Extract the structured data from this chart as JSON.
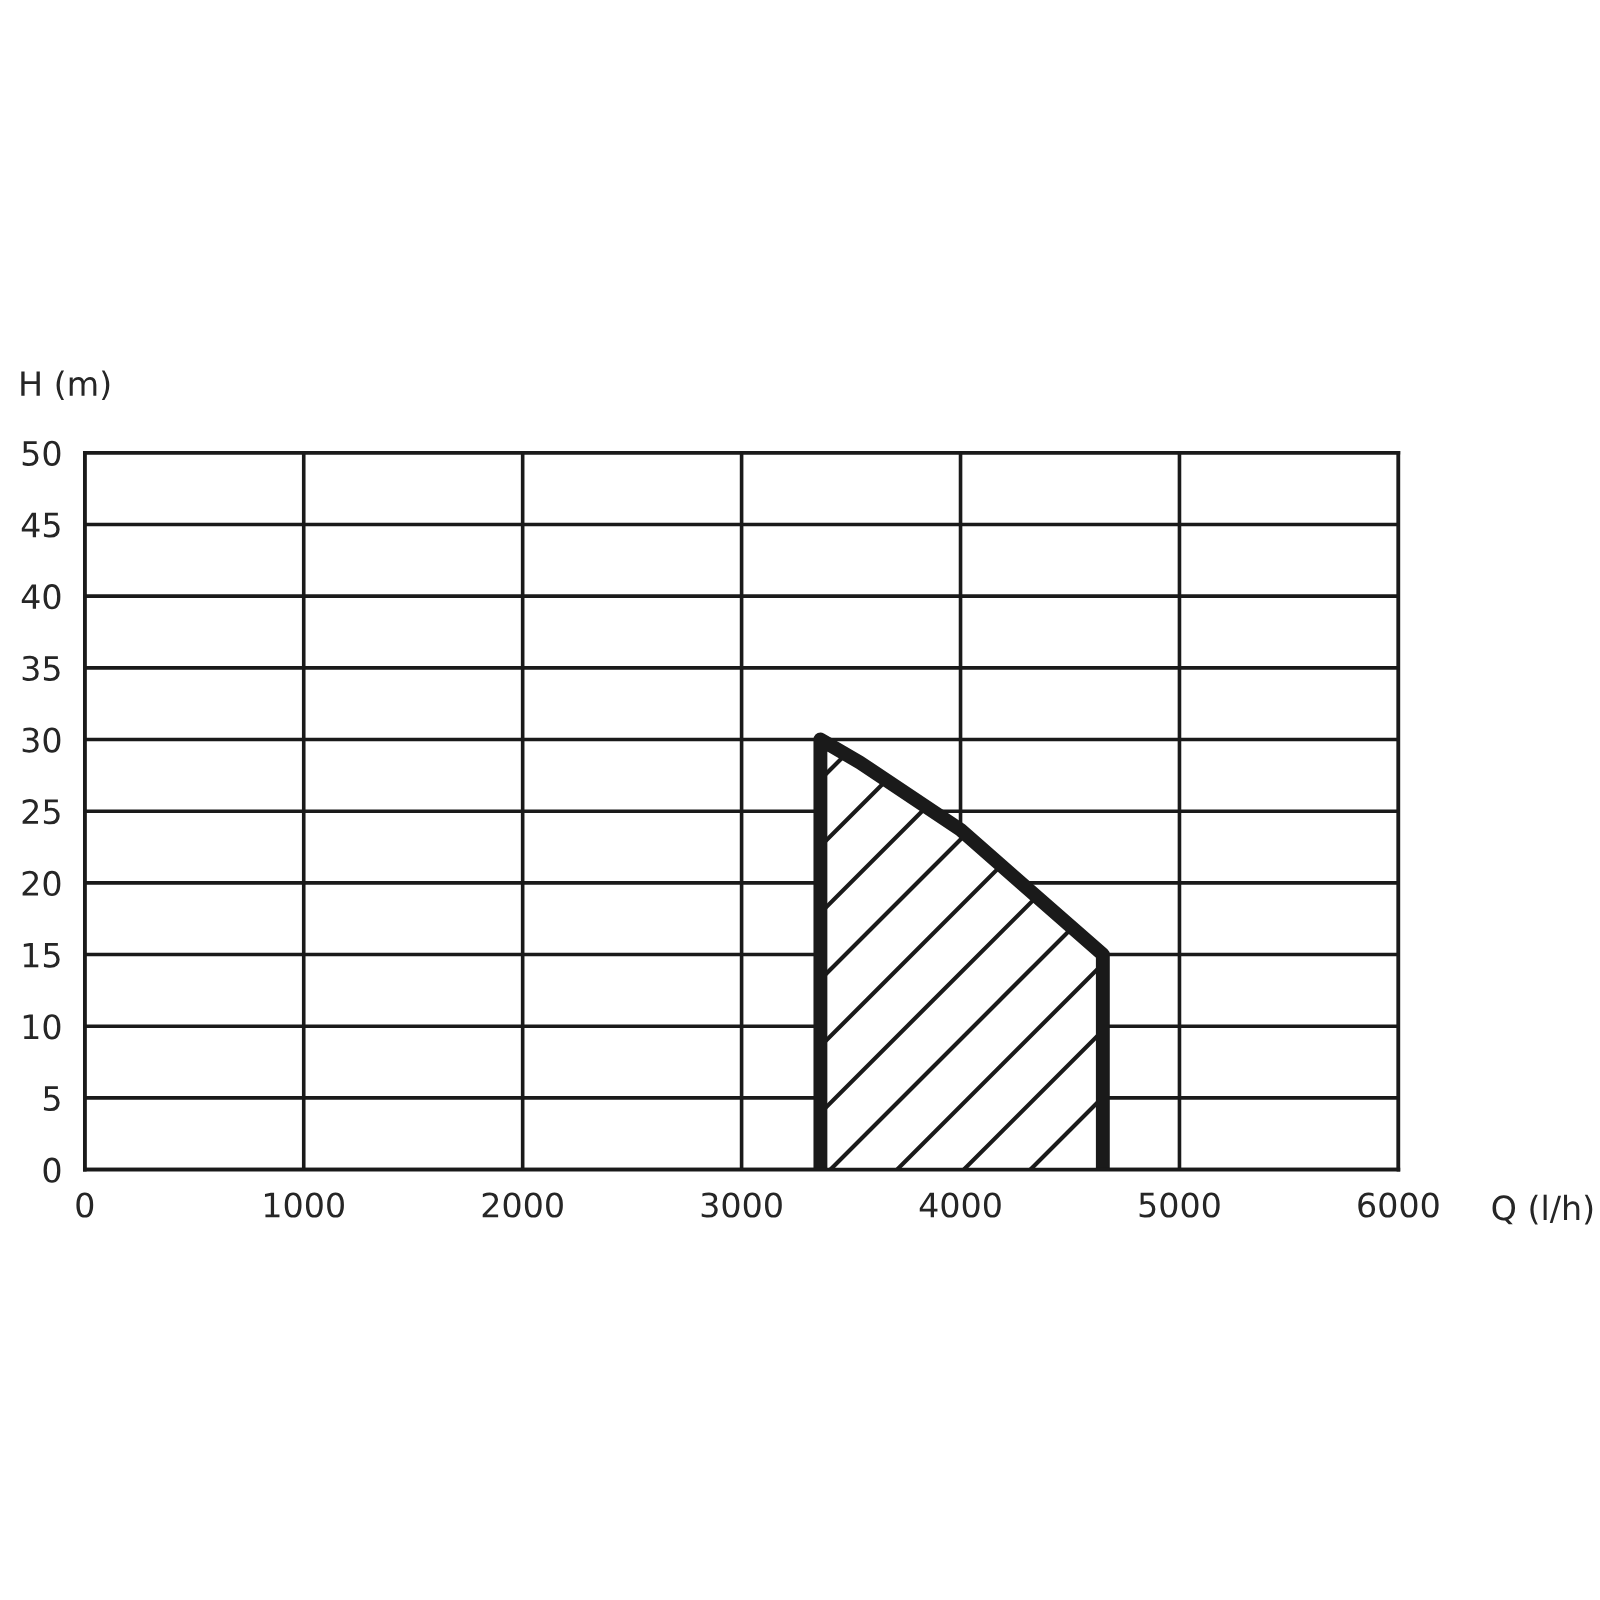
{
  "chart_data": {
    "type": "area",
    "xlabel": "Q (l/h)",
    "ylabel": "H (m)",
    "series": [
      {
        "color": "#1a1a1a",
        "x": [
          3360,
          3540,
          4000,
          4650
        ],
        "values": [
          30,
          28.4,
          23.7,
          15
        ]
      }
    ],
    "xlim": [
      0,
      6000
    ],
    "xticks": [
      0,
      1000,
      2000,
      3000,
      4000,
      5000,
      6000
    ],
    "ylim": [
      0,
      50
    ],
    "yticks": [
      0,
      5,
      10,
      15,
      20,
      25,
      30,
      35,
      40,
      45,
      50
    ],
    "grid": true,
    "legend": false
  }
}
